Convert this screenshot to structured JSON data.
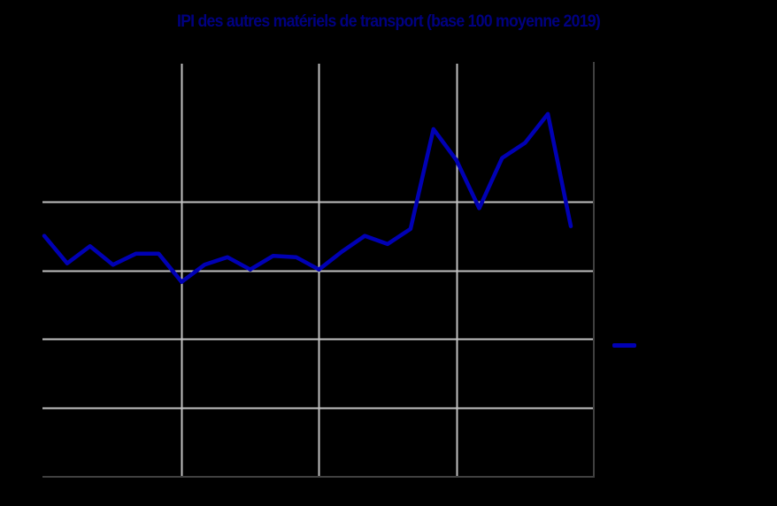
{
  "chart_data": {
    "type": "line",
    "title": "IPI des autres matériels de transport (base 100 moyenne 2019)",
    "xlabel": "",
    "ylabel": "",
    "ylim": [
      70,
      130
    ],
    "yticks": [
      70,
      80,
      90,
      100,
      110,
      120,
      130
    ],
    "grid": true,
    "legend_position": "right",
    "x": [
      1,
      2,
      3,
      4,
      5,
      6,
      7,
      8,
      9,
      10,
      11,
      12,
      13,
      14,
      15,
      16,
      17,
      18,
      19,
      20,
      21,
      22,
      23,
      24
    ],
    "series": [
      {
        "name": "",
        "color": "#0000B4",
        "values": [
          105.0,
          101.0,
          103.5,
          100.8,
          102.4,
          102.4,
          98.3,
          100.8,
          101.9,
          100.1,
          102.1,
          101.9,
          100.1,
          102.7,
          105.0,
          103.8,
          106.0,
          120.5,
          116.0,
          109.0,
          116.3,
          118.5,
          122.7,
          106.4
        ]
      }
    ]
  },
  "colors": {
    "background": "#000000",
    "title": "#000080",
    "line": "#0000B4",
    "grid": "#C0C0C0",
    "frame": "#404040"
  }
}
